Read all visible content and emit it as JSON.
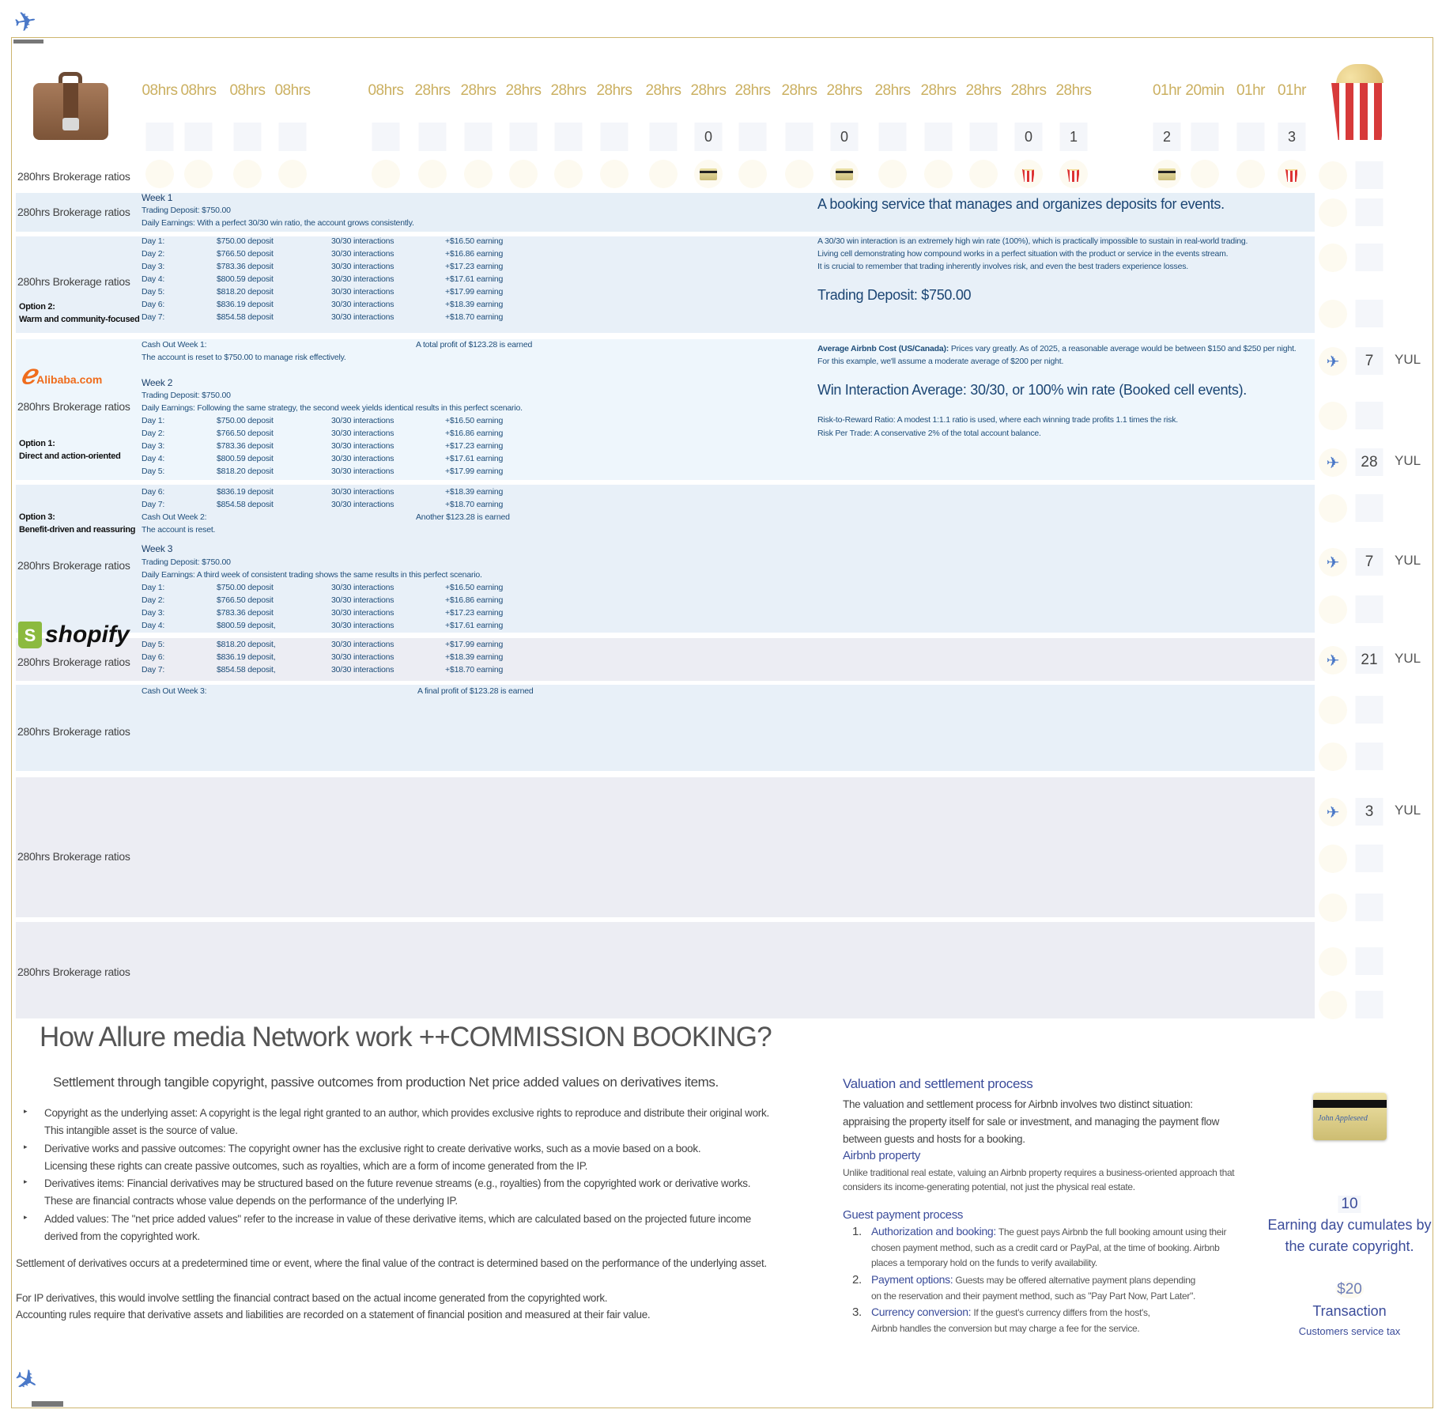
{
  "header": {
    "columns": [
      {
        "time": "08hrs",
        "count": "",
        "icon": ""
      },
      {
        "time": "08hrs",
        "count": "",
        "icon": ""
      },
      {
        "time": "08hrs",
        "count": "",
        "icon": ""
      },
      {
        "time": "08hrs",
        "count": "",
        "icon": ""
      },
      {
        "time": "08hrs",
        "count": "",
        "icon": ""
      },
      {
        "time": "28hrs",
        "count": "",
        "icon": ""
      },
      {
        "time": "28hrs",
        "count": "",
        "icon": ""
      },
      {
        "time": "28hrs",
        "count": "",
        "icon": ""
      },
      {
        "time": "28hrs",
        "count": "",
        "icon": ""
      },
      {
        "time": "28hrs",
        "count": "",
        "icon": ""
      },
      {
        "time": "28hrs",
        "count": "",
        "icon": ""
      },
      {
        "time": "28hrs",
        "count": "0",
        "icon": "credit-card-icon"
      },
      {
        "time": "28hrs",
        "count": "",
        "icon": ""
      },
      {
        "time": "28hrs",
        "count": "",
        "icon": ""
      },
      {
        "time": "28hrs",
        "count": "0",
        "icon": "credit-card-icon"
      },
      {
        "time": "28hrs",
        "count": "",
        "icon": ""
      },
      {
        "time": "28hrs",
        "count": "",
        "icon": ""
      },
      {
        "time": "28hrs",
        "count": "",
        "icon": ""
      },
      {
        "time": "28hrs",
        "count": "0",
        "icon": "popcorn-icon"
      },
      {
        "time": "28hrs",
        "count": "1",
        "icon": "popcorn-icon"
      },
      {
        "time": "01hr",
        "count": "2",
        "icon": "credit-card-icon"
      },
      {
        "time": "20min",
        "count": "",
        "icon": ""
      },
      {
        "time": "01hr",
        "count": "",
        "icon": ""
      },
      {
        "time": "01hr",
        "count": "3",
        "icon": "popcorn-icon"
      }
    ]
  },
  "rows": {
    "label": "280hrs Brokerage ratios",
    "option2": {
      "title": "Option 2:",
      "text": "Warm and community-focused"
    },
    "option1": {
      "title": "Option 1:",
      "text": "Direct and action-oriented"
    },
    "option3": {
      "title": "Option 3:",
      "text": "Benefit-driven and reassuring"
    },
    "alibaba_logo": "Alibaba.com",
    "shopify_logo": "shopify"
  },
  "weeks": {
    "week1": {
      "title": "Week 1",
      "deposit": "Trading Deposit: $750.00",
      "earnings": "Daily Earnings: With a perfect 30/30 win ratio, the account grows consistently.",
      "days": [
        [
          "Day 1:",
          "$750.00 deposit",
          "30/30 interactions",
          "+$16.50 earning"
        ],
        [
          "Day 2:",
          "$766.50 deposit",
          "30/30 interactions",
          "+$16.86 earning"
        ],
        [
          "Day 3:",
          "$783.36 deposit",
          "30/30 interactions",
          "+$17.23 earning"
        ],
        [
          "Day 4:",
          "$800.59 deposit",
          "30/30 interactions",
          "+$17.61 earning"
        ],
        [
          "Day 5:",
          "$818.20 deposit",
          "30/30 interactions",
          "+$17.99 earning"
        ],
        [
          "Day 6:",
          "$836.19 deposit",
          "30/30 interactions",
          "+$18.39 earning"
        ],
        [
          "Day 7:",
          "$854.58 deposit",
          "30/30 interactions",
          "+$18.70 earning"
        ]
      ],
      "cashout": "Cash Out Week 1:",
      "profit": "A total profit of $123.28 is earned",
      "reset": "The account is reset to $750.00 to manage risk effectively."
    },
    "week2": {
      "title": "Week 2",
      "deposit": "Trading Deposit: $750.00",
      "earnings": "Daily Earnings: Following the same strategy, the second week yields identical results in this perfect scenario.",
      "days": [
        [
          "Day 1:",
          "$750.00 deposit",
          "30/30 interactions",
          "+$16.50 earning"
        ],
        [
          "Day 2:",
          "$766.50 deposit",
          "30/30 interactions",
          "+$16.86 earning"
        ],
        [
          "Day 3:",
          "$783.36 deposit",
          "30/30 interactions",
          "+$17.23 earning"
        ],
        [
          "Day 4:",
          "$800.59 deposit",
          "30/30 interactions",
          "+$17.61 earning"
        ],
        [
          "Day 5:",
          "$818.20 deposit",
          "30/30 interactions",
          "+$17.99 earning"
        ],
        [
          "Day 6:",
          "$836.19 deposit",
          "30/30 interactions",
          "+$18.39 earning"
        ],
        [
          "Day 7:",
          "$854.58 deposit",
          "30/30 interactions",
          "+$18.70 earning"
        ]
      ],
      "cashout": "Cash Out Week 2:",
      "profit": "Another $123.28 is earned",
      "reset": "The account is reset."
    },
    "week3": {
      "title": "Week 3",
      "deposit": "Trading Deposit: $750.00",
      "earnings": "Daily Earnings: A third week of consistent trading shows the same results in this perfect scenario.",
      "days": [
        [
          "Day 1:",
          "$750.00 deposit",
          "30/30 interactions",
          "+$16.50 earning"
        ],
        [
          "Day 2:",
          "$766.50 deposit",
          "30/30 interactions",
          "+$16.86 earning"
        ],
        [
          "Day 3:",
          "$783.36 deposit",
          "30/30 interactions",
          "+$17.23 earning"
        ],
        [
          "Day 4:",
          "$800.59 deposit,",
          "30/30 interactions",
          "+$17.61 earning"
        ],
        [
          "Day 5:",
          "$818.20 deposit,",
          "30/30 interactions",
          "+$17.99 earning"
        ],
        [
          "Day 6:",
          "$836.19 deposit,",
          "30/30 interactions",
          "+$18.39 earning"
        ],
        [
          "Day 7:",
          "$854.58 deposit,",
          "30/30 interactions",
          "+$18.70 earning"
        ]
      ],
      "cashout": "Cash Out Week 3:",
      "profit": "A final profit of $123.28 is earned"
    }
  },
  "info": {
    "headline": "A booking service that manages and organizes deposits for events.",
    "lines": [
      "A 30/30 win interaction is an extremely high win rate (100%), which is practically impossible to sustain in real-world trading.",
      "Living cell demonstrating how compound works in a perfect situation with the product or service in the events stream.",
      "It is crucial to remember that trading inherently involves risk, and even the best traders experience losses."
    ],
    "deposit": "Trading Deposit: $750.00",
    "avg_label": "Average Airbnb Cost (US/Canada):",
    "avg_text": " Prices vary greatly. As of 2025, a reasonable average would be between $150 and $250 per night.",
    "avg_text2": "For this example, we'll assume a moderate average of $200 per night.",
    "win": "Win Interaction Average: 30/30, or 100% win rate (Booked cell events).",
    "risk1": "Risk-to-Reward Ratio: A modest 1:1.1 ratio is used, where each winning trade profits 1.1 times the risk.",
    "risk2": "Risk Per Trade: A conservative 2% of the total account balance."
  },
  "flights": [
    {
      "count": "7",
      "code": "YUL"
    },
    {
      "count": "28",
      "code": "YUL"
    },
    {
      "count": "7",
      "code": "YUL"
    },
    {
      "count": "21",
      "code": "YUL"
    },
    {
      "count": "3",
      "code": "YUL"
    }
  ],
  "bottom": {
    "title": "How Allure media Network work ++COMMISSION BOOKING?",
    "subtitle": "Settlement through tangible copyright, passive outcomes from production Net price added values on derivatives items.",
    "bullets": [
      [
        "Copyright as the underlying asset: A copyright is the legal right granted to an author, which provides exclusive rights to reproduce and distribute their original work.",
        "This intangible asset is the source of value."
      ],
      [
        "Derivative works and passive outcomes: The copyright owner has the exclusive right to create derivative works, such as a movie based on a book.",
        "Licensing these rights can create passive outcomes, such as royalties, which are a form of income generated from the IP."
      ],
      [
        "Derivatives items: Financial derivatives may be structured based on the future revenue streams (e.g., royalties) from the copyrighted work or derivative works.",
        "These are financial contracts whose value depends on the performance of the underlying IP."
      ],
      [
        "Added values: The \"net price added values\" refer to the increase in value of these derivative items, which are calculated based on the projected future income",
        "derived from the copyrighted work."
      ]
    ],
    "settlement": "Settlement of derivatives occurs at a predetermined time or event, where the final value of the contract is determined based on the performance of the underlying asset.",
    "ip": "For IP derivatives, this would involve settling the financial contract based on the actual income generated from the copyrighted work.",
    "accounting": "Accounting rules require that derivative assets and liabilities are recorded on a statement of financial position and measured at their fair value.",
    "valuation": {
      "title": "Valuation and settlement process",
      "lines": [
        "The valuation and settlement process for Airbnb involves two distinct situation:",
        "appraising the property itself for sale or investment, and managing the payment flow",
        "between guests and hosts for a booking."
      ],
      "property_title": "Airbnb property",
      "property_lines": [
        "Unlike traditional real estate, valuing an Airbnb property requires a business-oriented approach that",
        "considers its income-generating potential, not just the physical real estate."
      ],
      "guest_title": "Guest payment process",
      "steps": [
        {
          "num": "1.",
          "key": "Authorization and booking:",
          "lines": [
            " The guest pays Airbnb the full booking amount using their",
            "chosen payment method, such as a credit card or PayPal, at the time of booking. Airbnb",
            "places a temporary hold on the funds          to verify availability."
          ]
        },
        {
          "num": "2.",
          "key": "Payment options:",
          "lines": [
            " Guests may be offered alternative payment plans depending",
            "on the reservation and their payment method, such as \"Pay Part Now, Part Later\"."
          ]
        },
        {
          "num": "3.",
          "key": "Currency conversion:",
          "lines": [
            " If the guest's currency differs from the host's,",
            "Airbnb handles the conversion but may charge a fee for the service."
          ]
        }
      ]
    },
    "card_signature": "John Appleseed",
    "earning_days": "10",
    "earning_line1": "Earning day cumulates by",
    "earning_line2": "the curate copyright.",
    "fee": "$20",
    "fee_label": "Transaction",
    "fee_note": "Customers service tax"
  },
  "colors": {
    "gold": "#cbb061",
    "navy": "#1f4e7a",
    "indigo": "#3b4c9a",
    "band": "#e8f0f8",
    "band_light": "#eef6fc",
    "band_gray": "#ecedf3"
  }
}
